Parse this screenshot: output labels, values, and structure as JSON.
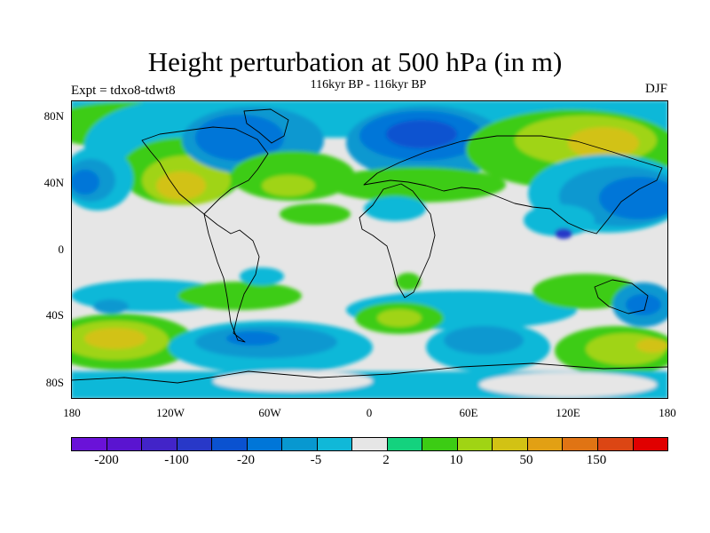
{
  "title": "Height perturbation at 500 hPa (in m)",
  "subtitle": "116kyr BP - 116kyr BP",
  "left_label": "Expt = tdxo8-tdwt8",
  "right_label": "DJF",
  "y_ticks": [
    "80N",
    "40N",
    "0",
    "40S",
    "80S"
  ],
  "x_ticks": [
    "180",
    "120W",
    "60W",
    "0",
    "60E",
    "120E",
    "180"
  ],
  "colorbar": {
    "colors": [
      "#6a12d8",
      "#5a14d0",
      "#4224c8",
      "#2838c8",
      "#0a52d0",
      "#0076d8",
      "#0898d0",
      "#10b8d8",
      "#e6e6e6",
      "#14d27e",
      "#3ccc14",
      "#a0d414",
      "#d2c214",
      "#e2a014",
      "#e07414",
      "#dc4614",
      "#e00000"
    ],
    "labels": [
      "-200",
      "-100",
      "-20",
      "-5",
      "2",
      "10",
      "50",
      "150"
    ]
  },
  "map": {
    "projection": "cylindrical equidistant",
    "lon_range": [
      -180,
      180
    ],
    "lat_range": [
      -90,
      90
    ],
    "background": "#e6e6e6"
  }
}
